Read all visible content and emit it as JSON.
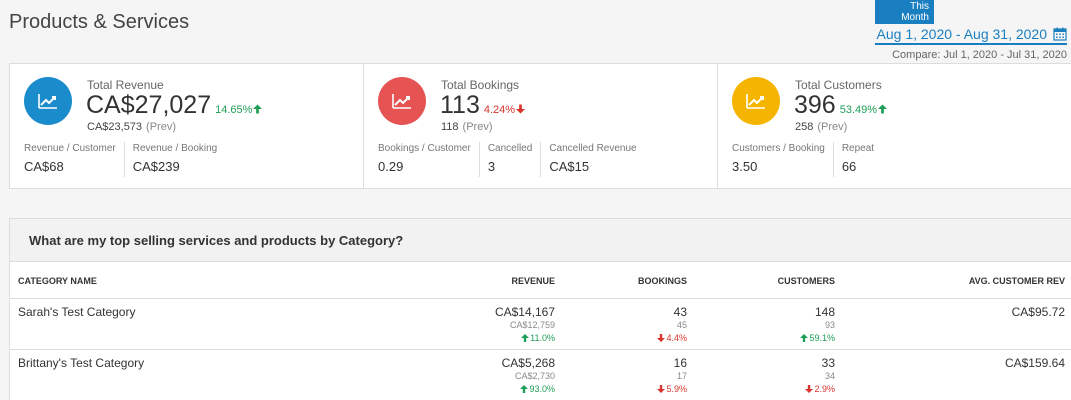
{
  "page": {
    "title": "Products & Services"
  },
  "date": {
    "badge": "This Month",
    "range": "Aug 1, 2020 - Aug 31, 2020",
    "compare": "Compare: Jul 1, 2020 - Jul 31, 2020"
  },
  "colors": {
    "revenue": "#1a8ccc",
    "bookings": "#e55353",
    "customers": "#f4b400",
    "up": "#1e9e56",
    "down": "#d9342b",
    "link": "#1a7fc1"
  },
  "kpis": [
    {
      "title": "Total Revenue",
      "value": "CA$27,027",
      "change": "14.65%",
      "direction": "up",
      "prev": "CA$23,573",
      "prev_tag": "(Prev)",
      "icon": "trend-up-icon",
      "subs": [
        {
          "label": "Revenue / Customer",
          "value": "CA$68"
        },
        {
          "label": "Revenue / Booking",
          "value": "CA$239"
        }
      ]
    },
    {
      "title": "Total Bookings",
      "value": "113",
      "change": "4.24%",
      "direction": "down",
      "prev": "118",
      "prev_tag": "(Prev)",
      "icon": "trend-up-icon",
      "subs": [
        {
          "label": "Bookings / Customer",
          "value": "0.29"
        },
        {
          "label": "Cancelled",
          "value": "3"
        },
        {
          "label": "Cancelled Revenue",
          "value": "CA$15"
        }
      ]
    },
    {
      "title": "Total Customers",
      "value": "396",
      "change": "53.49%",
      "direction": "up",
      "prev": "258",
      "prev_tag": "(Prev)",
      "icon": "trend-up-icon",
      "subs": [
        {
          "label": "Customers / Booking",
          "value": "3.50"
        },
        {
          "label": "Repeat",
          "value": "66"
        }
      ]
    }
  ],
  "table": {
    "question": "What are my top selling services and products by Category?",
    "columns": [
      "CATEGORY NAME",
      "REVENUE",
      "BOOKINGS",
      "CUSTOMERS",
      "AVG. CUSTOMER REV"
    ],
    "rows": [
      {
        "name": "Sarah's Test Category",
        "revenue": {
          "value": "CA$14,167",
          "prev": "CA$12,759",
          "change": "11.0%",
          "direction": "up"
        },
        "bookings": {
          "value": "43",
          "prev": "45",
          "change": "4.4%",
          "direction": "down"
        },
        "customers": {
          "value": "148",
          "prev": "93",
          "change": "59.1%",
          "direction": "up"
        },
        "avg": "CA$95.72"
      },
      {
        "name": "Brittany's Test Category",
        "revenue": {
          "value": "CA$5,268",
          "prev": "CA$2,730",
          "change": "93.0%",
          "direction": "up"
        },
        "bookings": {
          "value": "16",
          "prev": "17",
          "change": "5.9%",
          "direction": "down"
        },
        "customers": {
          "value": "33",
          "prev": "34",
          "change": "2.9%",
          "direction": "down"
        },
        "avg": "CA$159.64"
      }
    ]
  }
}
